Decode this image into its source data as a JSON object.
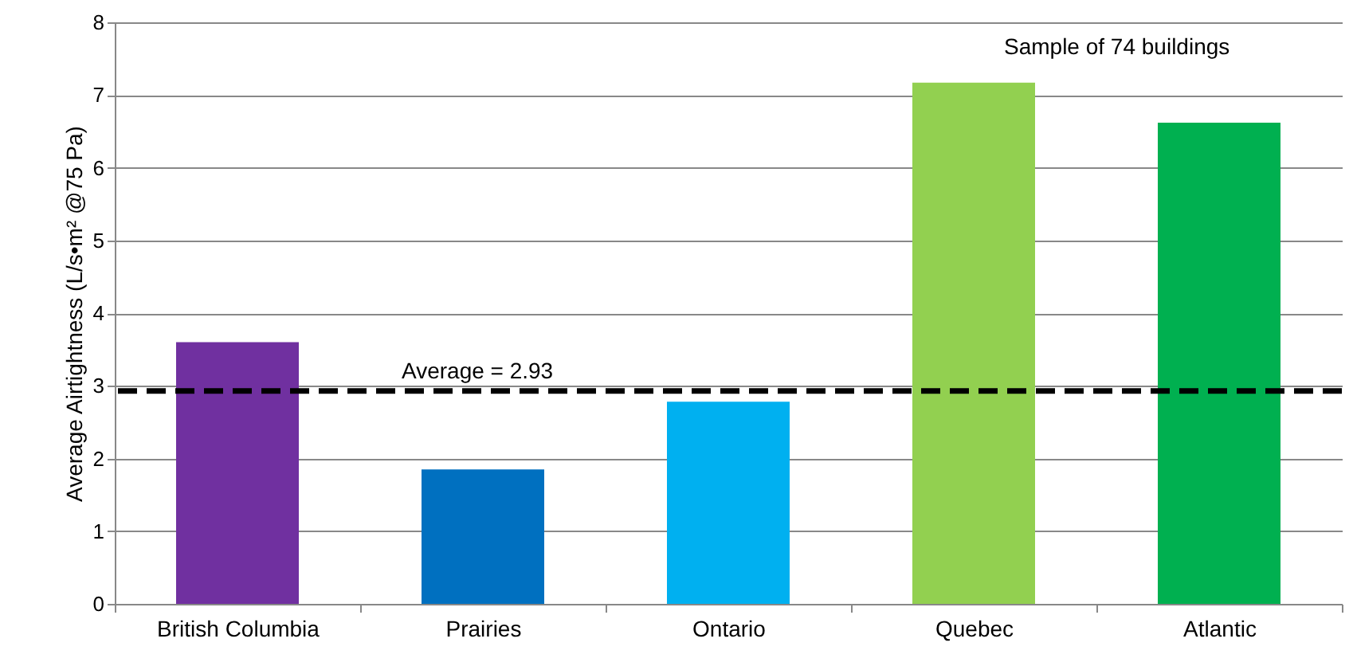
{
  "chart_data": {
    "type": "bar",
    "ylabel": "Average Airtightness (L/s•m² @75 Pa)",
    "categories": [
      "British Columbia",
      "Prairies",
      "Ontario",
      "Quebec",
      "Atlantic"
    ],
    "values": [
      3.6,
      1.85,
      2.78,
      7.17,
      6.62
    ],
    "colors": [
      "#7030a0",
      "#0070c0",
      "#00b0f0",
      "#92d050",
      "#00b050"
    ],
    "ylim": [
      0,
      8
    ],
    "yticks": [
      0,
      1,
      2,
      3,
      4,
      5,
      6,
      7,
      8
    ],
    "grid": "y",
    "ref_lines": [
      {
        "axis": "y",
        "value": 2.93,
        "label": "Average = 2.93",
        "color": "#000000",
        "line_style": "dashed"
      }
    ],
    "annotations": [
      "Sample of 74 buildings"
    ]
  }
}
